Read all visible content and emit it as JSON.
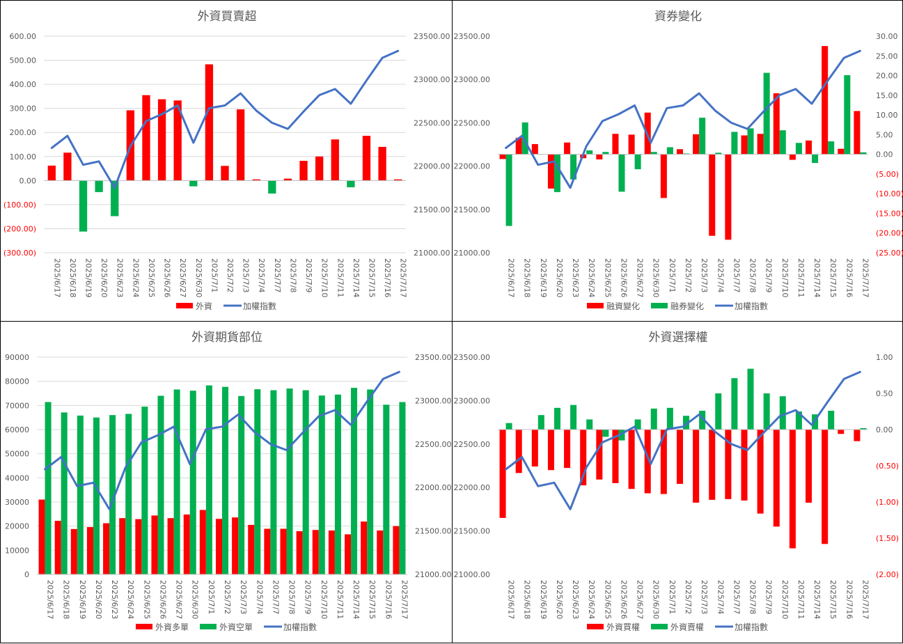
{
  "colors": {
    "red": "#ff0000",
    "green": "#00b050",
    "blue": "#4472c4",
    "neg_label": "#ff0000",
    "grid": "#d9d9d9",
    "text": "#595959"
  },
  "chart_data": [
    {
      "type": "bar",
      "title": "外資買賣超",
      "categories": [
        "2025/6/17",
        "2025/6/18",
        "2025/6/19",
        "2025/6/20",
        "2025/6/23",
        "2025/6/24",
        "2025/6/25",
        "2025/6/26",
        "2025/6/27",
        "2025/6/30",
        "2025/7/1",
        "2025/7/2",
        "2025/7/3",
        "2025/7/4",
        "2025/7/7",
        "2025/7/8",
        "2025/7/9",
        "2025/7/10",
        "2025/7/11",
        "2025/7/14",
        "2025/7/15",
        "2025/7/16",
        "2025/7/17"
      ],
      "series": [
        {
          "name": "外資",
          "kind": "bar",
          "axis": "left",
          "color": "#ff0000",
          "neg_color": "#00b050",
          "values": [
            62,
            116,
            -212,
            -48,
            -148,
            292,
            355,
            338,
            333,
            -24,
            483,
            61,
            296,
            5,
            -54,
            8,
            82,
            100,
            171,
            -28,
            186,
            140,
            5
          ]
        },
        {
          "name": "加權指數",
          "kind": "line",
          "axis": "right",
          "color": "#4472c4",
          "values": [
            22210,
            22350,
            22015,
            22055,
            21750,
            22230,
            22520,
            22600,
            22700,
            22270,
            22670,
            22700,
            22840,
            22640,
            22500,
            22430,
            22630,
            22820,
            22890,
            22720,
            22990,
            23250,
            23330
          ]
        }
      ],
      "y_left": {
        "min": -300,
        "max": 600,
        "step": 100,
        "tick_labels": [
          "(300.00)",
          "(200.00)",
          "(100.00)",
          "0.00",
          "100.00",
          "200.00",
          "300.00",
          "400.00",
          "500.00",
          "600.00"
        ]
      },
      "y_right": {
        "min": 21000,
        "max": 23500,
        "step": 500,
        "tick_labels": [
          "21000.00",
          "21500.00",
          "22000.00",
          "22500.00",
          "23000.00",
          "23500.00"
        ]
      },
      "legend": "bottom",
      "grid": true
    },
    {
      "type": "bar",
      "title": "資券變化",
      "categories": [
        "2025/6/17",
        "2025/6/18",
        "2025/6/19",
        "2025/6/20",
        "2025/6/23",
        "2025/6/24",
        "2025/6/25",
        "2025/6/26",
        "2025/6/27",
        "2025/6/30",
        "2025/7/1",
        "2025/7/2",
        "2025/7/3",
        "2025/7/4",
        "2025/7/7",
        "2025/7/8",
        "2025/7/9",
        "2025/7/10",
        "2025/7/11",
        "2025/7/14",
        "2025/7/15",
        "2025/7/16",
        "2025/7/17"
      ],
      "series": [
        {
          "name": "融資變化",
          "kind": "bar",
          "axis": "right",
          "color": "#ff0000",
          "values": [
            -1.2,
            4.2,
            2.6,
            -8.7,
            3.0,
            -1.0,
            -1.3,
            5.2,
            5.0,
            10.6,
            -11.1,
            1.3,
            5.1,
            -20.7,
            -21.7,
            4.8,
            5.2,
            15.5,
            -1.4,
            3.5,
            27.5,
            1.4,
            11.0
          ]
        },
        {
          "name": "融券變化",
          "kind": "bar",
          "axis": "right",
          "color": "#00b050",
          "values": [
            -18.2,
            8.1,
            0.0,
            -9.6,
            -6.4,
            1.0,
            0.6,
            -9.5,
            -3.8,
            0.6,
            1.8,
            0.2,
            9.3,
            0.4,
            5.7,
            6.6,
            20.7,
            6.1,
            2.9,
            -2.2,
            3.3,
            20.1,
            0.5
          ]
        },
        {
          "name": "加權指數",
          "kind": "line",
          "axis": "left",
          "color": "#4472c4",
          "values": [
            22210,
            22350,
            22015,
            22055,
            21750,
            22230,
            22520,
            22600,
            22700,
            22270,
            22670,
            22700,
            22840,
            22640,
            22500,
            22430,
            22630,
            22820,
            22890,
            22720,
            22990,
            23250,
            23330
          ]
        }
      ],
      "y_left": {
        "min": 21000,
        "max": 23500,
        "step": 500,
        "tick_labels": [
          "21000.00",
          "21500.00",
          "22000.00",
          "22500.00",
          "23000.00",
          "23500.00"
        ]
      },
      "y_right": {
        "min": -25,
        "max": 30,
        "step": 5,
        "tick_labels": [
          "(25.00)",
          "(20.00)",
          "(15.00)",
          "(10.00)",
          "(5.00)",
          "0.00",
          "5.00",
          "10.00",
          "15.00",
          "20.00",
          "25.00",
          "30.00"
        ]
      },
      "legend": "bottom",
      "grid": false
    },
    {
      "type": "bar",
      "title": "外資期貨部位",
      "categories": [
        "2025/6/17",
        "2025/6/18",
        "2025/6/19",
        "2025/6/20",
        "2025/6/23",
        "2025/6/24",
        "2025/6/25",
        "2025/6/26",
        "2025/6/27",
        "2025/6/30",
        "2025/7/1",
        "2025/7/2",
        "2025/7/3",
        "2025/7/4",
        "2025/7/7",
        "2025/7/8",
        "2025/7/9",
        "2025/7/10",
        "2025/7/11",
        "2025/7/14",
        "2025/7/15",
        "2025/7/16",
        "2025/7/17"
      ],
      "series": [
        {
          "name": "外資多單",
          "kind": "bar",
          "axis": "left",
          "color": "#ff0000",
          "values": [
            31000,
            22200,
            18800,
            19600,
            21200,
            23300,
            22900,
            24400,
            23300,
            24800,
            26700,
            23000,
            23600,
            20500,
            18900,
            18900,
            17900,
            18400,
            18200,
            16600,
            21900,
            18200,
            20000
          ]
        },
        {
          "name": "外資空單",
          "kind": "bar",
          "axis": "left",
          "color": "#00b050",
          "values": [
            71400,
            67100,
            65800,
            65000,
            66000,
            66500,
            69500,
            74000,
            76600,
            76100,
            78300,
            77700,
            73900,
            76700,
            76300,
            77000,
            76300,
            74100,
            74500,
            77300,
            76600,
            70300,
            71400
          ]
        },
        {
          "name": "加權指數",
          "kind": "line",
          "axis": "right",
          "color": "#4472c4",
          "values": [
            22210,
            22350,
            22015,
            22055,
            21750,
            22230,
            22520,
            22600,
            22700,
            22270,
            22670,
            22700,
            22840,
            22640,
            22500,
            22430,
            22630,
            22820,
            22890,
            22720,
            22990,
            23250,
            23330
          ]
        }
      ],
      "y_left": {
        "min": 0,
        "max": 90000,
        "step": 10000,
        "tick_labels": [
          "0",
          "10000",
          "20000",
          "30000",
          "40000",
          "50000",
          "60000",
          "70000",
          "80000",
          "90000"
        ]
      },
      "y_right": {
        "min": 21000,
        "max": 23500,
        "step": 500,
        "tick_labels": [
          "21000.00",
          "21500.00",
          "22000.00",
          "22500.00",
          "23000.00",
          "23500.00"
        ]
      },
      "legend": "bottom",
      "grid": true
    },
    {
      "type": "bar",
      "title": "外資選擇權",
      "categories": [
        "2025/6/17",
        "2025/6/18",
        "2025/6/19",
        "2025/6/20",
        "2025/6/23",
        "2025/6/24",
        "2025/6/25",
        "2025/6/26",
        "2025/6/27",
        "2025/6/30",
        "2025/7/1",
        "2025/7/2",
        "2025/7/3",
        "2025/7/4",
        "2025/7/7",
        "2025/7/8",
        "2025/7/9",
        "2025/7/10",
        "2025/7/11",
        "2025/7/14",
        "2025/7/15",
        "2025/7/16",
        "2025/7/17"
      ],
      "series": [
        {
          "name": "外資買權",
          "kind": "bar",
          "axis": "right",
          "color": "#ff0000",
          "values": [
            -1.22,
            -0.6,
            -0.51,
            -0.56,
            -0.53,
            -0.77,
            -0.69,
            -0.74,
            -0.82,
            -0.88,
            -0.89,
            -0.75,
            -1.01,
            -0.97,
            -0.96,
            -0.98,
            -1.16,
            -1.34,
            -1.64,
            -1.01,
            -1.58,
            -0.06,
            -0.16
          ]
        },
        {
          "name": "外資賣權",
          "kind": "bar",
          "axis": "right",
          "color": "#00b050",
          "values": [
            0.09,
            0.0,
            0.2,
            0.3,
            0.34,
            0.14,
            -0.1,
            -0.15,
            0.14,
            0.29,
            0.3,
            0.19,
            0.26,
            0.5,
            0.71,
            0.84,
            0.5,
            0.46,
            0.25,
            0.21,
            0.26,
            0.0,
            0.02
          ]
        },
        {
          "name": "加權指數",
          "kind": "line",
          "axis": "left",
          "color": "#4472c4",
          "values": [
            22210,
            22350,
            22015,
            22055,
            21750,
            22230,
            22520,
            22600,
            22700,
            22270,
            22670,
            22700,
            22840,
            22640,
            22500,
            22430,
            22630,
            22820,
            22890,
            22720,
            22990,
            23250,
            23330
          ]
        }
      ],
      "y_left": {
        "min": 21000,
        "max": 23500,
        "step": 500,
        "tick_labels": [
          "21000.00",
          "21500.00",
          "22000.00",
          "22500.00",
          "23000.00",
          "23500.00"
        ]
      },
      "y_right": {
        "min": -2,
        "max": 1,
        "step": 0.5,
        "tick_labels": [
          "(2.00)",
          "(1.50)",
          "(1.00)",
          "(0.50)",
          "0.00",
          "0.50",
          "1.00"
        ]
      },
      "legend": "bottom",
      "grid": false
    }
  ]
}
